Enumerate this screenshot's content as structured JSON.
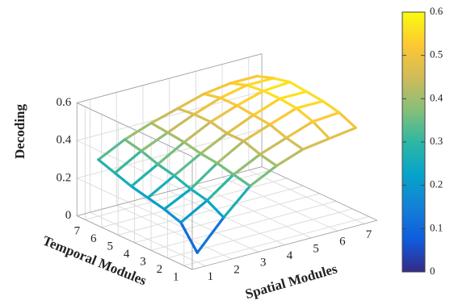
{
  "chart_data": {
    "type": "surface",
    "title": "",
    "xlabel": "Spatial Modules",
    "ylabel": "Temporal Modules",
    "zlabel": "Decoding",
    "x": [
      1,
      2,
      3,
      4,
      5,
      6,
      7
    ],
    "y": [
      1,
      2,
      3,
      4,
      5,
      6,
      7
    ],
    "z": [
      [
        0.05,
        0.2,
        0.33,
        0.4,
        0.45,
        0.47,
        0.49
      ],
      [
        0.17,
        0.25,
        0.35,
        0.42,
        0.47,
        0.52,
        0.53
      ],
      [
        0.2,
        0.27,
        0.37,
        0.45,
        0.5,
        0.55,
        0.55
      ],
      [
        0.22,
        0.3,
        0.38,
        0.45,
        0.51,
        0.56,
        0.56
      ],
      [
        0.24,
        0.32,
        0.4,
        0.47,
        0.52,
        0.56,
        0.57
      ],
      [
        0.27,
        0.35,
        0.41,
        0.47,
        0.52,
        0.55,
        0.55
      ],
      [
        0.3,
        0.37,
        0.42,
        0.46,
        0.5,
        0.52,
        0.52
      ]
    ],
    "z_ticks": [
      "0",
      "0.2",
      "0.4",
      "0.6"
    ],
    "zlim": [
      0,
      0.6
    ],
    "grid": true,
    "colormap": "parula",
    "colorbar": {
      "ticks": [
        "0",
        "0.1",
        "0.2",
        "0.3",
        "0.4",
        "0.5",
        "0.6"
      ],
      "range": [
        0,
        0.6
      ],
      "placement": "right"
    },
    "colors": [
      "#352a87",
      "#0f5cdd",
      "#1481d6",
      "#06a4ca",
      "#2eb7a4",
      "#87bf77",
      "#d1bb59",
      "#fec832",
      "#f9fb0e"
    ]
  }
}
